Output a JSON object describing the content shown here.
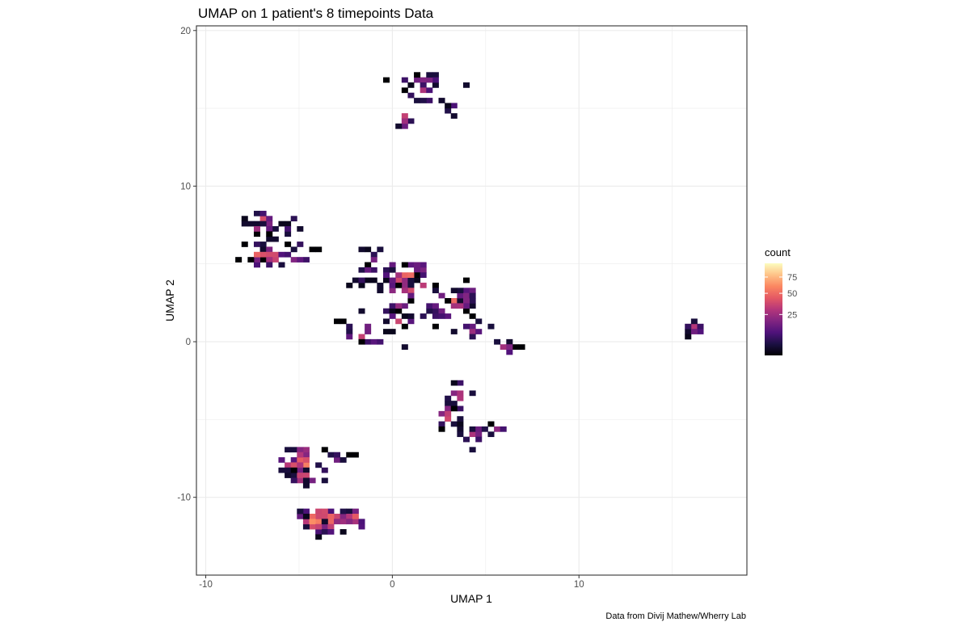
{
  "chart_data": {
    "type": "heatmap",
    "subtype": "hexbin-style 2D binned density",
    "title": "UMAP on 1 patient's 8 timepoints Data",
    "xlabel": "UMAP 1",
    "ylabel": "UMAP 2",
    "caption": "Data from Divij Mathew/Wherry Lab",
    "xlim": [
      -10.5,
      19
    ],
    "ylim": [
      -15,
      20.3
    ],
    "x_ticks": [
      -10,
      0,
      10
    ],
    "x_tick_labels": [
      "-10",
      "0",
      "10"
    ],
    "y_ticks": [
      -10,
      0,
      10,
      20
    ],
    "y_tick_labels": [
      "-10",
      "0",
      "10",
      "20"
    ],
    "grid": true,
    "theme": "bw",
    "bin_size": [
      0.33,
      0.33
    ],
    "legend": {
      "title": "count",
      "position": "right",
      "scale": "sqrt",
      "range": [
        1,
        100
      ],
      "ticks": [
        25,
        50,
        75
      ],
      "tick_labels": [
        "25",
        "50",
        "75"
      ],
      "colormap": "magma",
      "colors": [
        "#000004",
        "#1c1044",
        "#4f127b",
        "#812581",
        "#b5367a",
        "#e55964",
        "#fb8761",
        "#fec287",
        "#fcfdbf"
      ]
    },
    "clusters": [
      {
        "cx": -7.0,
        "cy": 7.5,
        "sx": 0.45,
        "sy": 0.5,
        "n": 22,
        "peak": 55
      },
      {
        "cx": -5.3,
        "cy": 7.4,
        "sx": 0.35,
        "sy": 0.45,
        "n": 10,
        "peak": 20
      },
      {
        "cx": -6.8,
        "cy": 5.5,
        "sx": 0.6,
        "sy": 0.4,
        "n": 34,
        "peak": 60
      },
      {
        "cx": -5.2,
        "cy": 5.6,
        "sx": 0.45,
        "sy": 0.35,
        "n": 14,
        "peak": 40
      },
      {
        "cx": -1.0,
        "cy": 4.9,
        "sx": 0.4,
        "sy": 0.6,
        "n": 12,
        "peak": 30
      },
      {
        "cx": 0.8,
        "cy": 4.0,
        "sx": 0.7,
        "sy": 0.7,
        "n": 34,
        "peak": 70
      },
      {
        "cx": -1.8,
        "cy": 3.9,
        "sx": 0.3,
        "sy": 0.15,
        "n": 5,
        "peak": 8
      },
      {
        "cx": 0.4,
        "cy": 1.8,
        "sx": 0.35,
        "sy": 0.6,
        "n": 16,
        "peak": 45
      },
      {
        "cx": -1.5,
        "cy": 0.4,
        "sx": 0.6,
        "sy": 0.45,
        "n": 16,
        "peak": 40
      },
      {
        "cx": 2.1,
        "cy": 1.8,
        "sx": 0.5,
        "sy": 0.2,
        "n": 8,
        "peak": 10
      },
      {
        "cx": 3.2,
        "cy": 2.5,
        "sx": 0.6,
        "sy": 0.5,
        "n": 28,
        "peak": 50
      },
      {
        "cx": 4.0,
        "cy": 3.0,
        "sx": 0.4,
        "sy": 0.3,
        "n": 10,
        "peak": 25
      },
      {
        "cx": 4.3,
        "cy": 0.6,
        "sx": 0.55,
        "sy": 0.4,
        "n": 18,
        "peak": 35
      },
      {
        "cx": 6.0,
        "cy": -0.4,
        "sx": 0.45,
        "sy": 0.25,
        "n": 10,
        "peak": 30
      },
      {
        "cx": 16.2,
        "cy": 0.8,
        "sx": 0.25,
        "sy": 0.3,
        "n": 10,
        "peak": 40
      },
      {
        "cx": 3.6,
        "cy": -3.5,
        "sx": 0.35,
        "sy": 0.5,
        "n": 14,
        "peak": 35
      },
      {
        "cx": 3.1,
        "cy": -4.7,
        "sx": 0.4,
        "sy": 0.4,
        "n": 16,
        "peak": 45
      },
      {
        "cx": 4.5,
        "cy": -5.9,
        "sx": 0.6,
        "sy": 0.3,
        "n": 18,
        "peak": 30
      },
      {
        "cx": 5.5,
        "cy": -5.7,
        "sx": 0.35,
        "sy": 0.3,
        "n": 8,
        "peak": 40
      },
      {
        "cx": 1.7,
        "cy": 16.8,
        "sx": 0.9,
        "sy": 0.25,
        "n": 18,
        "peak": 25
      },
      {
        "cx": 1.6,
        "cy": 16.0,
        "sx": 0.4,
        "sy": 0.3,
        "n": 8,
        "peak": 35
      },
      {
        "cx": 2.9,
        "cy": 15.2,
        "sx": 0.3,
        "sy": 0.3,
        "n": 8,
        "peak": 25
      },
      {
        "cx": 0.6,
        "cy": 14.3,
        "sx": 0.22,
        "sy": 0.3,
        "n": 6,
        "peak": 45
      },
      {
        "cx": -4.9,
        "cy": -8.0,
        "sx": 0.55,
        "sy": 0.8,
        "n": 55,
        "peak": 60
      },
      {
        "cx": -3.0,
        "cy": -7.5,
        "sx": 0.45,
        "sy": 0.25,
        "n": 9,
        "peak": 20
      },
      {
        "cx": -3.8,
        "cy": -11.4,
        "sx": 0.7,
        "sy": 0.4,
        "n": 60,
        "peak": 85
      },
      {
        "cx": -2.1,
        "cy": -11.4,
        "sx": 0.5,
        "sy": 0.4,
        "n": 22,
        "peak": 60
      }
    ]
  }
}
